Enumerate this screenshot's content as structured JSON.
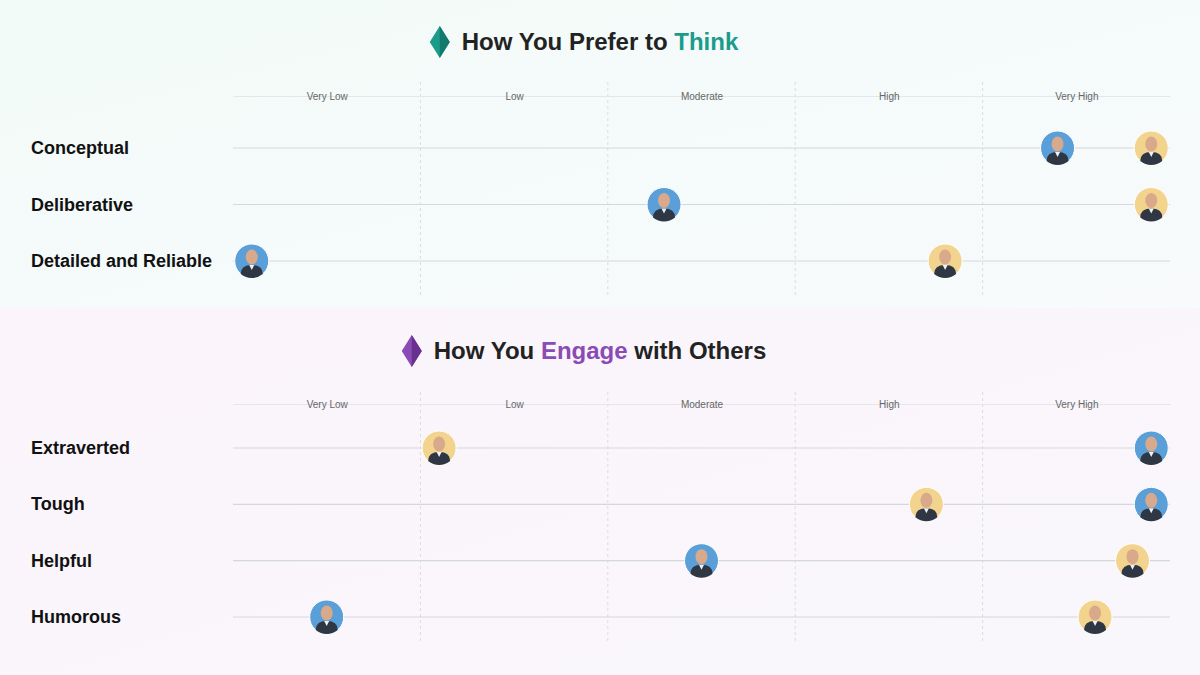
{
  "chart_data": [
    {
      "type": "dot",
      "title": "How You Prefer to Think",
      "orientation": "horizontal",
      "marker": "circle",
      "grid": true,
      "categories": [
        "Conceptual",
        "Deliberative",
        "Detailed and Reliable"
      ],
      "xlim": [
        0.5,
        5.5
      ],
      "xticks": [
        {
          "value": 1,
          "label": "Very Low"
        },
        {
          "value": 2,
          "label": "Low"
        },
        {
          "value": 3,
          "label": "Moderate"
        },
        {
          "value": 4,
          "label": "High"
        },
        {
          "value": 5,
          "label": "Very High"
        }
      ],
      "series": [
        {
          "color": "#5b9fd9",
          "values": [
            4.9,
            2.8,
            0.6
          ]
        },
        {
          "color": "#f3d48e",
          "values": [
            5.4,
            5.4,
            4.3
          ]
        }
      ]
    },
    {
      "type": "dot",
      "title": "How You Engage with Others",
      "orientation": "horizontal",
      "marker": "circle",
      "grid": true,
      "categories": [
        "Extraverted",
        "Tough",
        "Helpful",
        "Humorous"
      ],
      "xlim": [
        0.5,
        5.5
      ],
      "xticks": [
        {
          "value": 1,
          "label": "Very Low"
        },
        {
          "value": 2,
          "label": "Low"
        },
        {
          "value": 3,
          "label": "Moderate"
        },
        {
          "value": 4,
          "label": "High"
        },
        {
          "value": 5,
          "label": "Very High"
        }
      ],
      "series": [
        {
          "color": "#5b9fd9",
          "values": [
            5.4,
            5.4,
            3.0,
            1.0
          ]
        },
        {
          "color": "#f3d48e",
          "values": [
            1.6,
            4.2,
            5.3,
            5.1
          ]
        }
      ]
    }
  ]
}
